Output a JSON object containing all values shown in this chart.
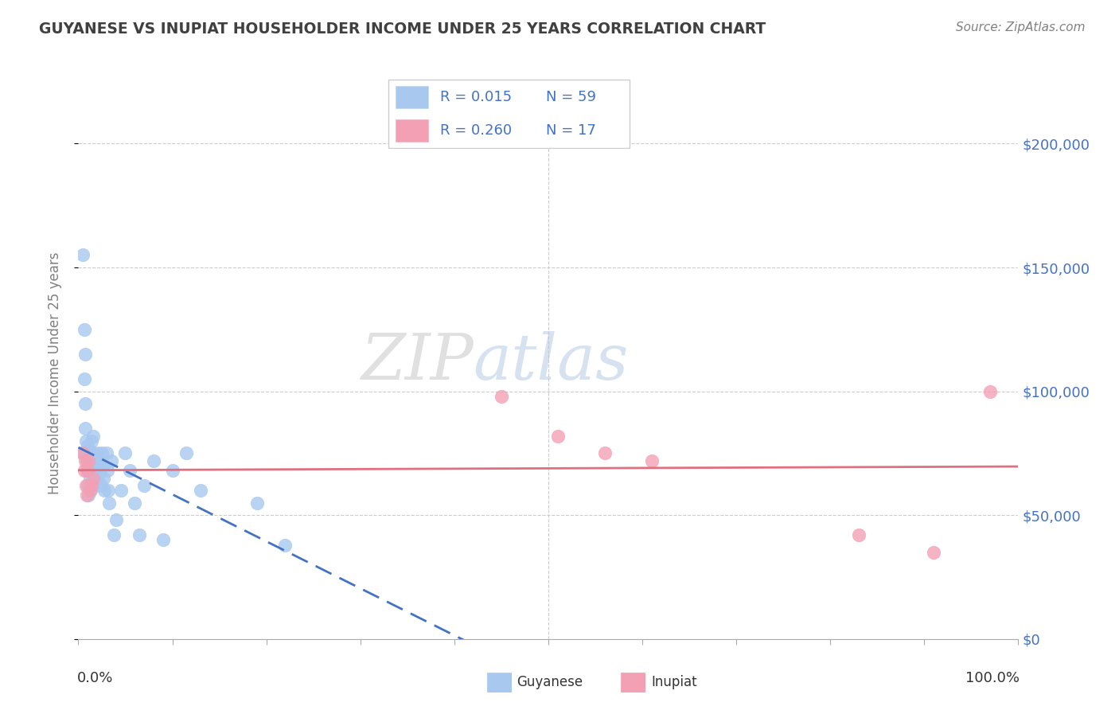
{
  "title": "GUYANESE VS INUPIAT HOUSEHOLDER INCOME UNDER 25 YEARS CORRELATION CHART",
  "source": "Source: ZipAtlas.com",
  "ylabel": "Householder Income Under 25 years",
  "ytick_values": [
    0,
    50000,
    100000,
    150000,
    200000
  ],
  "ytick_labels_right": [
    "$0",
    "$50,000",
    "$100,000",
    "$150,000",
    "$200,000"
  ],
  "xlim": [
    0.0,
    1.0
  ],
  "ylim": [
    0,
    215000
  ],
  "legend_r1": "R = 0.015",
  "legend_n1": "N = 59",
  "legend_r2": "R = 0.260",
  "legend_n2": "N = 17",
  "watermark_zip": "ZIP",
  "watermark_atlas": "atlas",
  "guyanese_color": "#a8c8f0",
  "inupiat_color": "#f4a0b4",
  "guyanese_line_color": "#4472c4",
  "inupiat_line_color": "#e07080",
  "title_color": "#404040",
  "source_color": "#808080",
  "ylabel_color": "#808080",
  "right_tick_color": "#4472c4",
  "guyanese_x": [
    0.004,
    0.005,
    0.006,
    0.006,
    0.007,
    0.007,
    0.007,
    0.008,
    0.008,
    0.009,
    0.009,
    0.01,
    0.01,
    0.01,
    0.011,
    0.011,
    0.012,
    0.012,
    0.013,
    0.013,
    0.014,
    0.014,
    0.015,
    0.015,
    0.016,
    0.016,
    0.017,
    0.018,
    0.019,
    0.02,
    0.02,
    0.021,
    0.022,
    0.023,
    0.024,
    0.025,
    0.026,
    0.027,
    0.028,
    0.03,
    0.031,
    0.032,
    0.033,
    0.035,
    0.038,
    0.04,
    0.045,
    0.05,
    0.055,
    0.06,
    0.065,
    0.07,
    0.08,
    0.09,
    0.1,
    0.115,
    0.13,
    0.19,
    0.22
  ],
  "guyanese_y": [
    75000,
    155000,
    125000,
    105000,
    115000,
    95000,
    85000,
    80000,
    75000,
    72000,
    68000,
    78000,
    70000,
    62000,
    68000,
    58000,
    75000,
    65000,
    72000,
    60000,
    80000,
    68000,
    75000,
    62000,
    82000,
    70000,
    72000,
    68000,
    65000,
    75000,
    70000,
    65000,
    72000,
    68000,
    62000,
    75000,
    70000,
    65000,
    60000,
    75000,
    68000,
    60000,
    55000,
    72000,
    42000,
    48000,
    60000,
    75000,
    68000,
    55000,
    42000,
    62000,
    72000,
    40000,
    68000,
    75000,
    60000,
    55000,
    38000
  ],
  "inupiat_x": [
    0.005,
    0.006,
    0.007,
    0.008,
    0.009,
    0.01,
    0.011,
    0.012,
    0.014,
    0.016,
    0.45,
    0.51,
    0.56,
    0.61,
    0.83,
    0.91,
    0.97
  ],
  "inupiat_y": [
    75000,
    68000,
    72000,
    62000,
    58000,
    68000,
    72000,
    60000,
    62000,
    65000,
    98000,
    82000,
    75000,
    72000,
    42000,
    35000,
    100000
  ]
}
